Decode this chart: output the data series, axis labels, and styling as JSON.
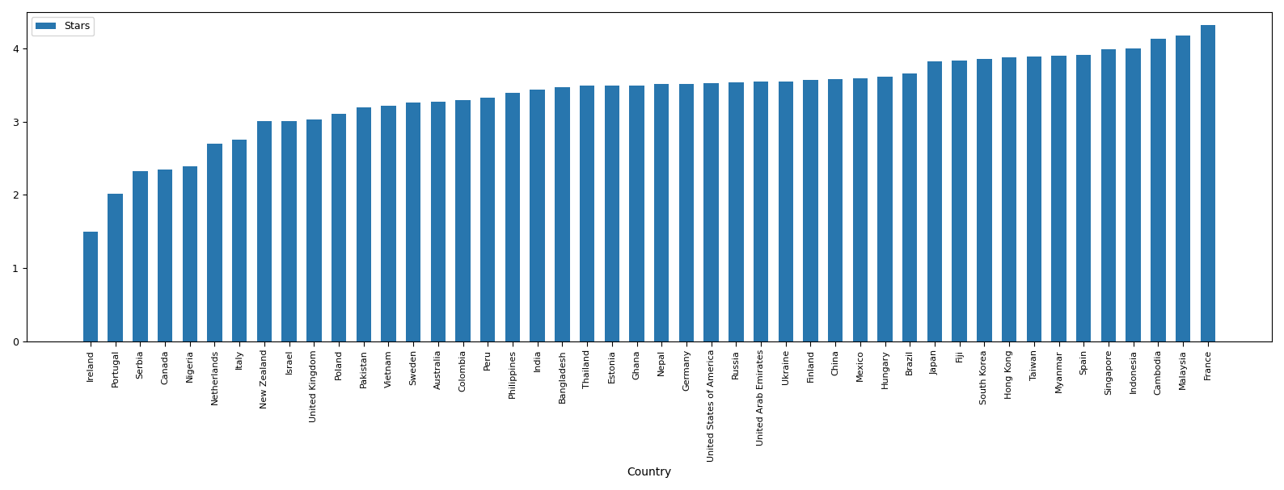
{
  "countries": [
    "Ireland",
    "Portugal",
    "Serbia",
    "Canada",
    "Nigeria",
    "Netherlands",
    "Italy",
    "New Zealand",
    "Israel",
    "United Kingdom",
    "Poland",
    "Pakistan",
    "Vietnam",
    "Sweden",
    "Australia",
    "Colombia",
    "Peru",
    "Philippines",
    "India",
    "Bangladesh",
    "Thailand",
    "Estonia",
    "Ghana",
    "Nepal",
    "Germany",
    "United States of America",
    "Russia",
    "United Arab Emirates",
    "Ukraine",
    "Finland",
    "China",
    "Mexico",
    "Hungary",
    "Brazil",
    "Japan",
    "Fiji",
    "South Korea",
    "Hong Kong",
    "Taiwan",
    "Myanmar",
    "Spain",
    "Singapore",
    "Indonesia",
    "Cambodia",
    "Malaysia",
    "France"
  ],
  "values": [
    1.5,
    2.01,
    2.33,
    2.35,
    2.39,
    2.7,
    2.75,
    3.01,
    3.01,
    3.03,
    3.11,
    3.2,
    3.22,
    3.26,
    3.27,
    3.3,
    3.33,
    3.4,
    3.44,
    3.47,
    3.49,
    3.5,
    3.5,
    3.52,
    3.52,
    3.53,
    3.54,
    3.55,
    3.55,
    3.57,
    3.58,
    3.59,
    3.62,
    3.66,
    3.83,
    3.84,
    3.86,
    3.88,
    3.89,
    3.9,
    3.91,
    3.99,
    4.0,
    4.14,
    4.18,
    4.32
  ],
  "bar_color": "#2876ae",
  "xlabel": "Country",
  "ylabel": "",
  "legend_label": "Stars",
  "ylim": [
    0,
    4.5
  ],
  "yticks": [
    0,
    1,
    2,
    3,
    4
  ]
}
